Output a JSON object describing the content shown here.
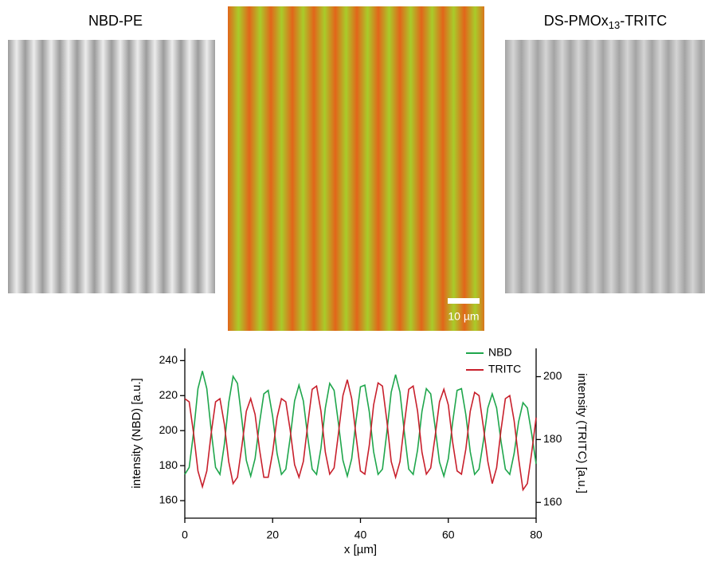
{
  "images": {
    "left": {
      "title": "NBD-PE"
    },
    "right": {
      "title": [
        "DS-PMOx",
        "13",
        "-TRITC"
      ]
    },
    "scale_bar": "10 µm"
  },
  "chart_data": {
    "type": "line",
    "x_label": "x [µm]",
    "y_label": "intensity (NBD) [a.u.]",
    "y2_label": "intensity (TRITC) [a.u.]",
    "xlim": [
      0,
      80
    ],
    "xticks": [
      0,
      20,
      40,
      60,
      80
    ],
    "ylim": [
      150,
      247
    ],
    "yticks": [
      160,
      180,
      200,
      220,
      240
    ],
    "y2lim": [
      155,
      209
    ],
    "y2ticks": [
      160,
      180,
      200
    ],
    "legend": "upper right",
    "x": [
      0,
      1,
      2,
      3,
      4,
      5,
      6,
      7,
      8,
      9,
      10,
      11,
      12,
      13,
      14,
      15,
      16,
      17,
      18,
      19,
      20,
      21,
      22,
      23,
      24,
      25,
      26,
      27,
      28,
      29,
      30,
      31,
      32,
      33,
      34,
      35,
      36,
      37,
      38,
      39,
      40,
      41,
      42,
      43,
      44,
      45,
      46,
      47,
      48,
      49,
      50,
      51,
      52,
      53,
      54,
      55,
      56,
      57,
      58,
      59,
      60,
      61,
      62,
      63,
      64,
      65,
      66,
      67,
      68,
      69,
      70,
      71,
      72,
      73,
      74,
      75,
      76,
      77,
      78,
      79,
      80
    ],
    "series": [
      {
        "name": "NBD",
        "color": "#1fa64c",
        "values": [
          175,
          179,
          199,
          224,
          234,
          224,
          200,
          179,
          175,
          192,
          216,
          231,
          227,
          206,
          183,
          174,
          184,
          204,
          221,
          223,
          208,
          187,
          175,
          178,
          196,
          217,
          226,
          217,
          196,
          178,
          175,
          190,
          213,
          227,
          223,
          204,
          183,
          174,
          184,
          206,
          225,
          226,
          211,
          188,
          175,
          178,
          199,
          222,
          232,
          222,
          199,
          178,
          175,
          189,
          211,
          224,
          221,
          202,
          182,
          174,
          184,
          205,
          223,
          224,
          209,
          188,
          175,
          178,
          194,
          213,
          221,
          213,
          194,
          178,
          175,
          187,
          205,
          216,
          213,
          198,
          181
        ]
      },
      {
        "name": "TRITC",
        "color": "#c8202c",
        "axis": "y2",
        "values": [
          193,
          192,
          182,
          170,
          165,
          170,
          182,
          192,
          193,
          185,
          173,
          166,
          168,
          178,
          189,
          193,
          188,
          177,
          168,
          168,
          176,
          187,
          193,
          192,
          183,
          172,
          168,
          173,
          185,
          196,
          197,
          189,
          176,
          169,
          171,
          182,
          194,
          199,
          193,
          181,
          170,
          169,
          178,
          191,
          198,
          197,
          186,
          173,
          168,
          173,
          185,
          196,
          197,
          189,
          176,
          169,
          171,
          181,
          192,
          196,
          191,
          179,
          170,
          169,
          177,
          189,
          195,
          194,
          184,
          173,
          166,
          171,
          183,
          193,
          194,
          186,
          174,
          164,
          166,
          176,
          187
        ]
      }
    ]
  }
}
